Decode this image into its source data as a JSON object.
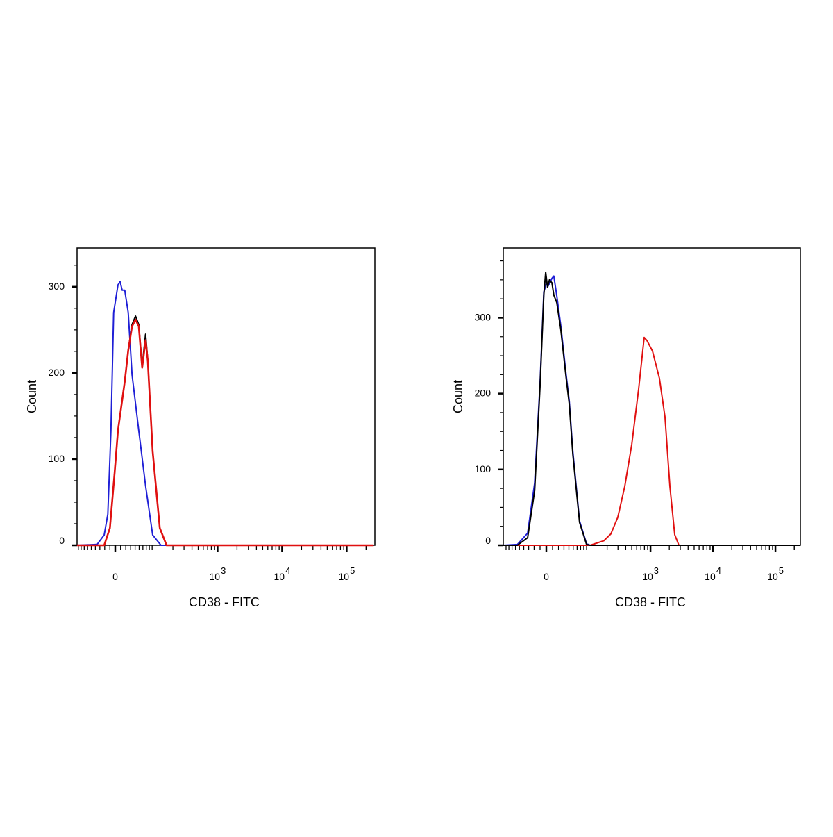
{
  "chart_data": [
    {
      "type": "line",
      "title": "",
      "xlabel": "CD38 - FITC",
      "ylabel": "Count",
      "xscale": "biexponential",
      "xlim": [
        -95,
        262144
      ],
      "ylim": [
        0,
        345
      ],
      "yticks": [
        0,
        100,
        200,
        300
      ],
      "xtick_labels": [
        {
          "value": 0,
          "base": "0",
          "exp": ""
        },
        {
          "value": 1000,
          "base": "10",
          "exp": "3"
        },
        {
          "value": 10000,
          "base": "10",
          "exp": "4"
        },
        {
          "value": 100000,
          "base": "10",
          "exp": "5"
        }
      ],
      "grid": false,
      "series": [
        {
          "name": "blue",
          "color": "#1f1fd6",
          "points": [
            [
              -95,
              0
            ],
            [
              -36,
              1
            ],
            [
              -21,
              12
            ],
            [
              -14,
              36
            ],
            [
              -8,
              133
            ],
            [
              -3,
              270
            ],
            [
              5,
              302
            ],
            [
              9,
              306
            ],
            [
              13,
              296
            ],
            [
              18,
              296
            ],
            [
              25,
              270
            ],
            [
              33,
              198
            ],
            [
              49,
              133
            ],
            [
              68,
              69
            ],
            [
              92,
              12
            ],
            [
              128,
              0
            ],
            [
              262144,
              0
            ]
          ]
        },
        {
          "name": "black",
          "color": "#000000",
          "points": [
            [
              -95,
              0
            ],
            [
              -21,
              0
            ],
            [
              -10,
              20
            ],
            [
              -1,
              85
            ],
            [
              5,
              133
            ],
            [
              18,
              190
            ],
            [
              25,
              226
            ],
            [
              33,
              256
            ],
            [
              41,
              266
            ],
            [
              49,
              256
            ],
            [
              58,
              208
            ],
            [
              68,
              245
            ],
            [
              75,
              214
            ],
            [
              92,
              109
            ],
            [
              122,
              20
            ],
            [
              158,
              0
            ],
            [
              262144,
              0
            ]
          ]
        },
        {
          "name": "red",
          "color": "#e01010",
          "points": [
            [
              -95,
              0
            ],
            [
              -21,
              0
            ],
            [
              -10,
              20
            ],
            [
              -1,
              85
            ],
            [
              5,
              133
            ],
            [
              18,
              190
            ],
            [
              25,
              226
            ],
            [
              33,
              254
            ],
            [
              41,
              262
            ],
            [
              49,
              254
            ],
            [
              58,
              206
            ],
            [
              68,
              238
            ],
            [
              75,
              214
            ],
            [
              92,
              109
            ],
            [
              122,
              20
            ],
            [
              158,
              0
            ],
            [
              262144,
              0
            ]
          ]
        }
      ]
    },
    {
      "type": "line",
      "title": "",
      "xlabel": "CD38 - FITC",
      "ylabel": "Count",
      "xscale": "biexponential",
      "xlim": [
        -101,
        262144
      ],
      "ylim": [
        0,
        392
      ],
      "yticks": [
        0,
        100,
        200,
        300
      ],
      "xtick_labels": [
        {
          "value": 0,
          "base": "0",
          "exp": ""
        },
        {
          "value": 1000,
          "base": "10",
          "exp": "3"
        },
        {
          "value": 10000,
          "base": "10",
          "exp": "4"
        },
        {
          "value": 100000,
          "base": "10",
          "exp": "5"
        }
      ],
      "grid": false,
      "series": [
        {
          "name": "red",
          "color": "#e01010",
          "points": [
            [
              -101,
              0
            ],
            [
              104,
              0
            ],
            [
              177,
              6
            ],
            [
              230,
              15
            ],
            [
              298,
              37
            ],
            [
              387,
              78
            ],
            [
              500,
              133
            ],
            [
              645,
              206
            ],
            [
              792,
              274
            ],
            [
              877,
              270
            ],
            [
              1076,
              256
            ],
            [
              1391,
              220
            ],
            [
              1707,
              169
            ],
            [
              2042,
              78
            ],
            [
              2442,
              14
            ],
            [
              2847,
              0
            ],
            [
              262144,
              0
            ]
          ]
        },
        {
          "name": "blue",
          "color": "#1f1fd6",
          "points": [
            [
              -101,
              0
            ],
            [
              -55,
              1
            ],
            [
              -32,
              16
            ],
            [
              -19,
              82
            ],
            [
              -10,
              215
            ],
            [
              -4,
              334
            ],
            [
              0,
              345
            ],
            [
              3,
              342
            ],
            [
              9,
              352
            ],
            [
              12,
              355
            ],
            [
              17,
              329
            ],
            [
              24,
              290
            ],
            [
              34,
              226
            ],
            [
              41,
              190
            ],
            [
              49,
              124
            ],
            [
              67,
              32
            ],
            [
              90,
              2
            ],
            [
              104,
              0
            ],
            [
              262144,
              0
            ]
          ]
        },
        {
          "name": "black",
          "color": "#000000",
          "points": [
            [
              -101,
              0
            ],
            [
              -55,
              0
            ],
            [
              -32,
              10
            ],
            [
              -19,
              72
            ],
            [
              -10,
              210
            ],
            [
              -4,
              330
            ],
            [
              -1,
              360
            ],
            [
              2,
              340
            ],
            [
              5,
              350
            ],
            [
              9,
              346
            ],
            [
              12,
              330
            ],
            [
              17,
              320
            ],
            [
              24,
              285
            ],
            [
              34,
              222
            ],
            [
              41,
              186
            ],
            [
              49,
              120
            ],
            [
              67,
              30
            ],
            [
              90,
              1
            ],
            [
              104,
              0
            ],
            [
              262144,
              0
            ]
          ]
        }
      ]
    }
  ]
}
